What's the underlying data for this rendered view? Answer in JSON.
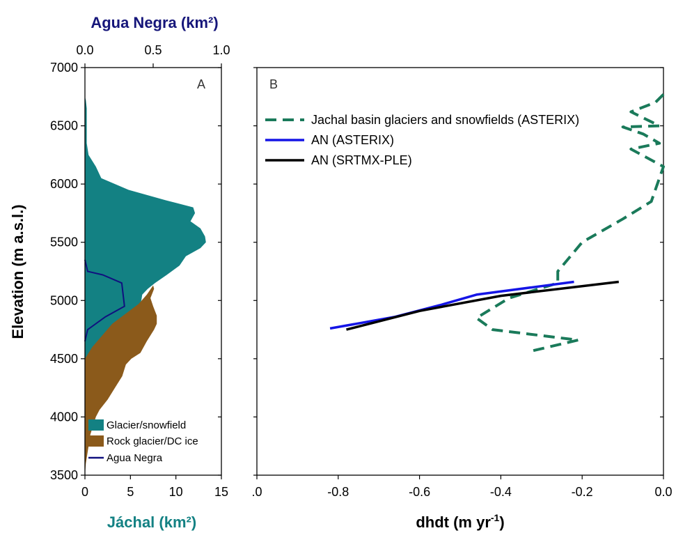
{
  "chart_data": [
    {
      "panel": "A",
      "type": "area",
      "ylabel": "Elevation (m a.s.l.)",
      "xlabel_bottom": "Jáchal (km²)",
      "xlabel_top": "Agua Negra (km²)",
      "ylim": [
        3500,
        7000
      ],
      "yticks": [
        "3500",
        "4000",
        "4500",
        "5000",
        "5500",
        "6000",
        "6500",
        "7000"
      ],
      "yticks_values": [
        3500,
        4000,
        4500,
        5000,
        5500,
        6000,
        6500,
        7000
      ],
      "xlim_bottom": [
        0,
        15
      ],
      "xticks_bottom": [
        "0",
        "5",
        "10",
        "15"
      ],
      "xticks_bottom_values": [
        0,
        5,
        10,
        15
      ],
      "xlim_top": [
        0,
        1
      ],
      "xticks_top": [
        "0.0",
        "0.5",
        "1.0"
      ],
      "xticks_top_values": [
        0,
        0.5,
        1
      ],
      "legend": [
        "Glacier/snowfield",
        "Rock glacier/DC ice",
        "Agua Negra"
      ],
      "series": [
        {
          "name": "Glacier/snowfield",
          "color": "#138183",
          "points": [
            [
              0,
              4450
            ],
            [
              0.4,
              4500
            ],
            [
              0.6,
              4550
            ],
            [
              1.5,
              4620
            ],
            [
              2.5,
              4700
            ],
            [
              3.6,
              4760
            ],
            [
              4.6,
              4800
            ],
            [
              5.3,
              4850
            ],
            [
              5.6,
              4900
            ],
            [
              5.9,
              4950
            ],
            [
              6.2,
              5000
            ],
            [
              6.3,
              5050
            ],
            [
              6.9,
              5100
            ],
            [
              7.7,
              5150
            ],
            [
              9.0,
              5220
            ],
            [
              10.4,
              5300
            ],
            [
              11.1,
              5380
            ],
            [
              12.7,
              5450
            ],
            [
              13.3,
              5500
            ],
            [
              13.2,
              5550
            ],
            [
              12.7,
              5620
            ],
            [
              11.6,
              5680
            ],
            [
              12.1,
              5750
            ],
            [
              11.9,
              5800
            ],
            [
              8.9,
              5860
            ],
            [
              4.8,
              5950
            ],
            [
              1.8,
              6050
            ],
            [
              1.2,
              6150
            ],
            [
              0.4,
              6250
            ],
            [
              0.2,
              6350
            ],
            [
              0.2,
              6500
            ],
            [
              0.2,
              6650
            ],
            [
              0.1,
              6720
            ],
            [
              0,
              6750
            ]
          ]
        },
        {
          "name": "Rock glacier/DC ice",
          "color": "#8b5a1b",
          "points": [
            [
              0,
              3500
            ],
            [
              0.1,
              3600
            ],
            [
              0.3,
              3700
            ],
            [
              0.6,
              3850
            ],
            [
              1.2,
              4000
            ],
            [
              1.6,
              4060
            ],
            [
              2.5,
              4150
            ],
            [
              3.3,
              4250
            ],
            [
              4.1,
              4350
            ],
            [
              4.5,
              4450
            ],
            [
              5.1,
              4500
            ],
            [
              6.1,
              4550
            ],
            [
              6.8,
              4650
            ],
            [
              7.6,
              4750
            ],
            [
              7.9,
              4800
            ],
            [
              7.9,
              4870
            ],
            [
              7.5,
              4950
            ],
            [
              7.2,
              5020
            ],
            [
              7.6,
              5100
            ],
            [
              7.5,
              5130
            ],
            [
              6.8,
              5050
            ],
            [
              5.9,
              4970
            ],
            [
              3.0,
              4800
            ],
            [
              0.8,
              4600
            ],
            [
              0,
              4500
            ]
          ]
        },
        {
          "name": "Agua Negra",
          "color": "#10107f",
          "points": [
            [
              0,
              4650
            ],
            [
              0.02,
              4750
            ],
            [
              0.15,
              4860
            ],
            [
              0.29,
              4950
            ],
            [
              0.27,
              5150
            ],
            [
              0.13,
              5220
            ],
            [
              0.02,
              5250
            ],
            [
              0,
              5350
            ]
          ]
        }
      ]
    },
    {
      "panel": "B",
      "type": "line",
      "xlabel": "dhdt (m yr-1)",
      "xlabel_main": "dhdt (m yr",
      "xlabel_sup": "-1",
      "xlabel_close": ")",
      "xlim": [
        -1.0,
        0.0
      ],
      "xticks": [
        ".0",
        "-0.8",
        "-0.6",
        "-0.4",
        "-0.2",
        "0.0"
      ],
      "xticks_values": [
        -1.0,
        -0.8,
        -0.6,
        -0.4,
        -0.2,
        0.0
      ],
      "ylim": [
        3500,
        7000
      ],
      "legend": [
        "Jachal basin glaciers and snowfields (ASTERIX)",
        "AN (ASTERIX)",
        "AN (SRTMX-PLE)"
      ],
      "series": [
        {
          "name": "Jachal basin glaciers and snowfields (ASTERIX)",
          "color": "#1a7a5a",
          "style": "dashed",
          "points": [
            [
              -0.32,
              4570
            ],
            [
              -0.21,
              4660
            ],
            [
              -0.42,
              4750
            ],
            [
              -0.46,
              4850
            ],
            [
              -0.38,
              5020
            ],
            [
              -0.26,
              5150
            ],
            [
              -0.26,
              5250
            ],
            [
              -0.2,
              5500
            ],
            [
              -0.1,
              5700
            ],
            [
              -0.03,
              5850
            ],
            [
              -0.02,
              5950
            ],
            [
              0.0,
              6150
            ],
            [
              -0.08,
              6300
            ],
            [
              -0.01,
              6350
            ],
            [
              -0.05,
              6430
            ],
            [
              -0.1,
              6490
            ],
            [
              -0.01,
              6500
            ],
            [
              -0.08,
              6620
            ],
            [
              -0.02,
              6700
            ],
            [
              0.0,
              6770
            ]
          ]
        },
        {
          "name": "AN (ASTERIX)",
          "color": "#1515e6",
          "style": "solid",
          "points": [
            [
              -0.82,
              4760
            ],
            [
              -0.66,
              4860
            ],
            [
              -0.55,
              4960
            ],
            [
              -0.46,
              5050
            ],
            [
              -0.22,
              5160
            ]
          ]
        },
        {
          "name": "AN (SRTMX-PLE)",
          "color": "#000000",
          "style": "solid",
          "points": [
            [
              -0.78,
              4750
            ],
            [
              -0.6,
              4910
            ],
            [
              -0.4,
              5040
            ],
            [
              -0.11,
              5160
            ]
          ]
        }
      ]
    }
  ]
}
